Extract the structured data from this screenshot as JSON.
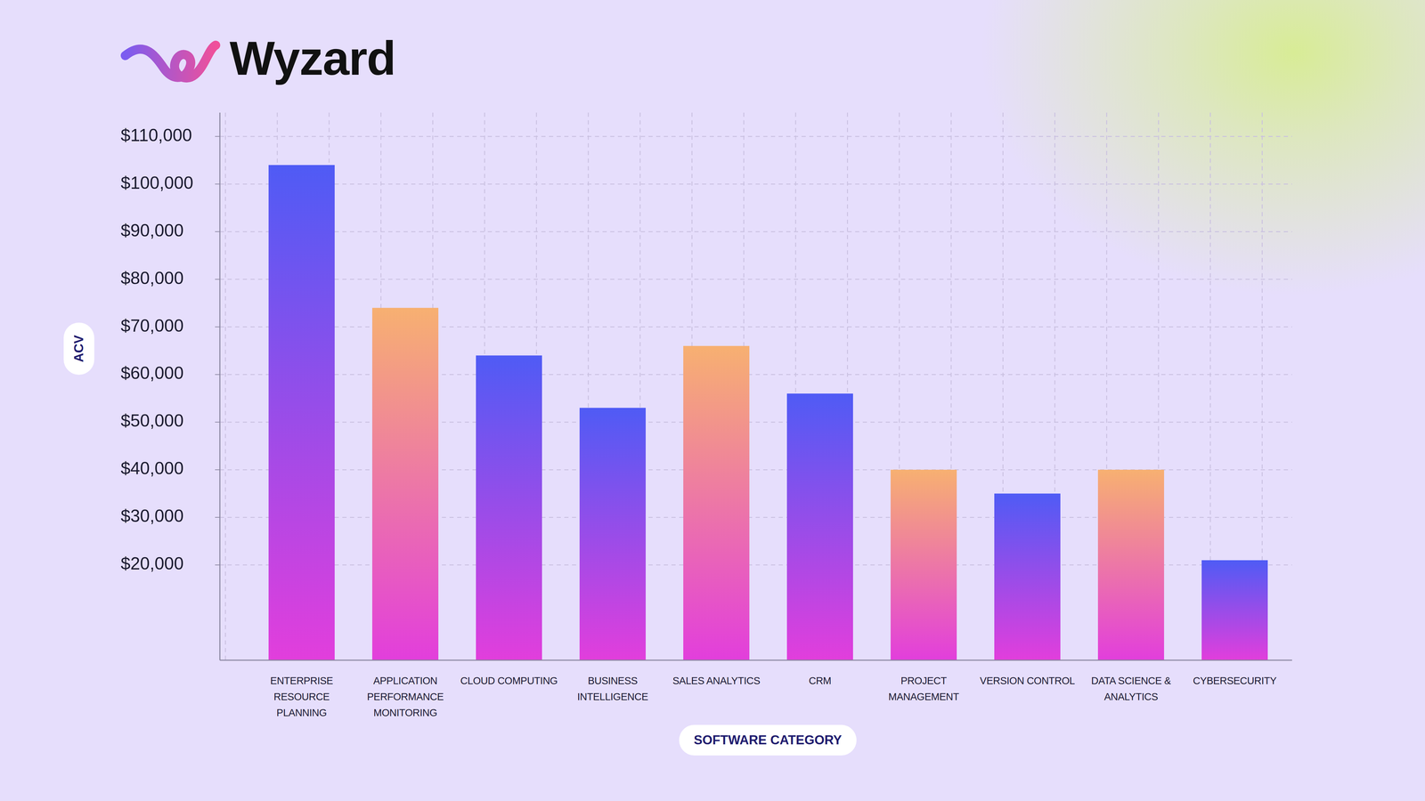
{
  "chart_data": {
    "type": "bar",
    "brand": "Wyzard",
    "x_label": "SOFTWARE CATEGORY",
    "y_label": "ACV",
    "categories": [
      "ENTERPRISE RESOURCE PLANNING",
      "APPLICATION PERFORMANCE MONITORING",
      "CLOUD COMPUTING",
      "BUSINESS INTELLIGENCE",
      "SALES ANALYTICS",
      "CRM",
      "PROJECT MANAGEMENT",
      "VERSION CONTROL",
      "DATA SCIENCE & ANALYTICS",
      "CYBERSECURITY"
    ],
    "values": [
      104000,
      74000,
      64000,
      53000,
      66000,
      56000,
      40000,
      35000,
      40000,
      21000
    ],
    "colors": [
      "#4F5BF5",
      "#F7B071",
      "#4F5BF5",
      "#4F5BF5",
      "#F7B071",
      "#4F5BF5",
      "#F7B071",
      "#4F5BF5",
      "#F7B071",
      "#4F5BF5"
    ],
    "ylim": [
      0,
      115000
    ],
    "yticks": [
      {
        "value": 20000,
        "label": "$20,000"
      },
      {
        "value": 30000,
        "label": "$30,000"
      },
      {
        "value": 40000,
        "label": "$40,000"
      },
      {
        "value": 50000,
        "label": "$50,000"
      },
      {
        "value": 60000,
        "label": "$60,000"
      },
      {
        "value": 70000,
        "label": "$70,000"
      },
      {
        "value": 80000,
        "label": "$80,000"
      },
      {
        "value": 90000,
        "label": "$90,000"
      },
      {
        "value": 100000,
        "label": "$100,000"
      },
      {
        "value": 110000,
        "label": "$110,000"
      }
    ],
    "grid": true
  }
}
